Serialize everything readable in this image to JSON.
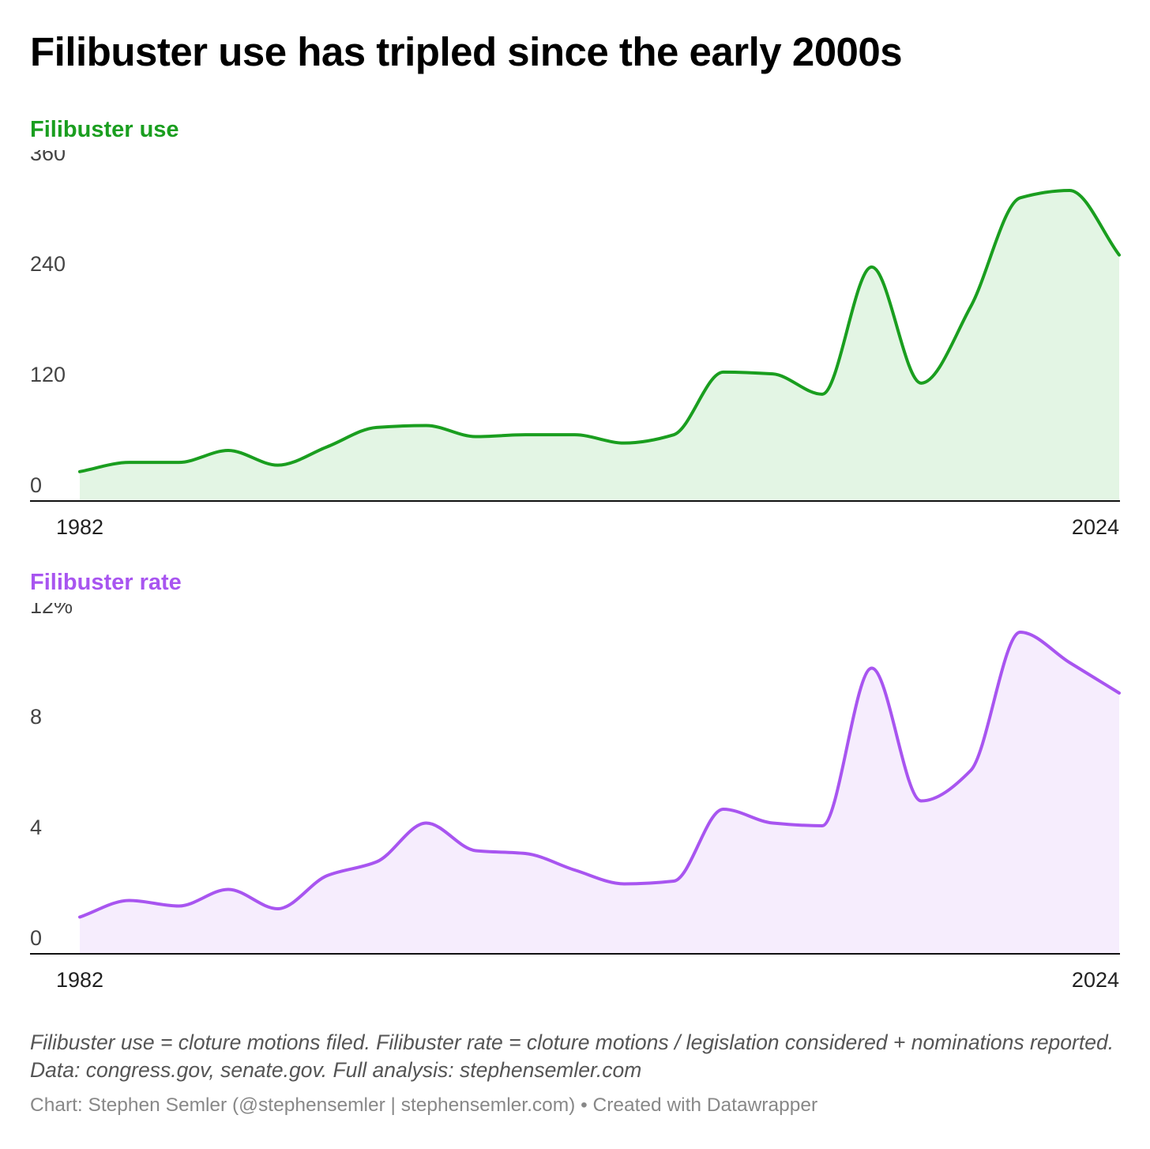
{
  "title": "Filibuster use has tripled since the early 2000s",
  "chart_data": [
    {
      "type": "area",
      "title": "Filibuster use",
      "color": "#1a9e1f",
      "fill": "#e3f5e4",
      "ylim": [
        0,
        360
      ],
      "yticks": [
        {
          "v": 0,
          "label": "0"
        },
        {
          "v": 120,
          "label": "120"
        },
        {
          "v": 240,
          "label": "240"
        },
        {
          "v": 360,
          "label": "360"
        }
      ],
      "xticks": [
        "1982",
        "2024"
      ],
      "x": [
        1982,
        1984,
        1986,
        1988,
        1990,
        1992,
        1994,
        1996,
        1998,
        2000,
        2002,
        2004,
        2006,
        2008,
        2010,
        2012,
        2014,
        2016,
        2018,
        2020,
        2022,
        2024
      ],
      "values": [
        31,
        41,
        41,
        54,
        38,
        58,
        79,
        81,
        69,
        71,
        71,
        62,
        71,
        139,
        137,
        115,
        253,
        127,
        210,
        328,
        336,
        266
      ]
    },
    {
      "type": "area",
      "title": "Filibuster rate",
      "color": "#a855f0",
      "fill": "#f6edfd",
      "ylim": [
        0,
        12
      ],
      "yticks": [
        {
          "v": 0,
          "label": "0"
        },
        {
          "v": 4,
          "label": "4"
        },
        {
          "v": 8,
          "label": "8"
        },
        {
          "v": 12,
          "label": "12%"
        }
      ],
      "xticks": [
        "1982",
        "2024"
      ],
      "x": [
        1982,
        1984,
        1986,
        1988,
        1990,
        1992,
        1994,
        1996,
        1998,
        2000,
        2002,
        2004,
        2006,
        2008,
        2010,
        2012,
        2014,
        2016,
        2018,
        2020,
        2022,
        2024
      ],
      "values": [
        1.3,
        1.9,
        1.7,
        2.3,
        1.6,
        2.8,
        3.3,
        4.7,
        3.7,
        3.6,
        3.0,
        2.5,
        2.6,
        5.2,
        4.7,
        4.6,
        10.3,
        5.5,
        6.6,
        11.6,
        10.5,
        9.4
      ]
    }
  ],
  "notes": "Filibuster use = cloture motions filed. Filibuster rate = cloture motions / legislation considered + nominations reported. Data: congress.gov, senate.gov. Full analysis: stephensemler.com",
  "credit": "Chart: Stephen Semler (@stephensemler | stephensemler.com) • Created with Datawrapper"
}
